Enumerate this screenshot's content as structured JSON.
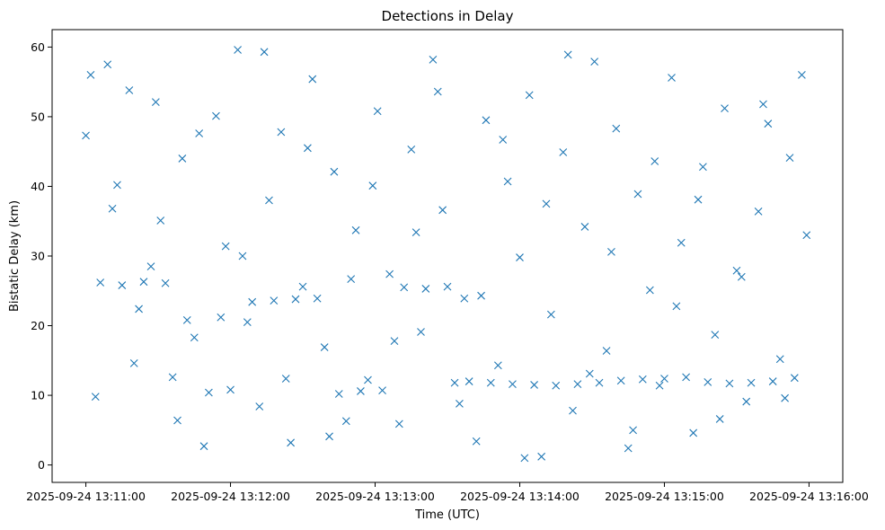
{
  "chart_data": {
    "type": "scatter",
    "title": "Detections in Delay",
    "xlabel": "Time (UTC)",
    "ylabel": "Bistatic Delay (km)",
    "x_tick_labels": [
      "2025-09-24 13:11:00",
      "2025-09-24 13:12:00",
      "2025-09-24 13:13:00",
      "2025-09-24 13:14:00",
      "2025-09-24 13:15:00",
      "2025-09-24 13:16:00"
    ],
    "x_tick_times": [
      "13:11:00",
      "13:12:00",
      "13:13:00",
      "13:14:00",
      "13:15:00",
      "13:16:00"
    ],
    "xlim": [
      "13:10:46",
      "13:16:14"
    ],
    "y_ticks": [
      0,
      10,
      20,
      30,
      40,
      50,
      60
    ],
    "ylim": [
      -2.5,
      62.5
    ],
    "grid": false,
    "legend": "none",
    "marker": "x",
    "color": "#1f77b4",
    "series": [
      {
        "x": [
          "13:11:00",
          "13:11:04",
          "13:11:09",
          "13:11:13",
          "13:11:18",
          "13:11:22",
          "13:11:27",
          "13:11:31",
          "13:11:36",
          "13:11:40",
          "13:11:45",
          "13:11:49",
          "13:11:54",
          "13:11:58",
          "13:12:03",
          "13:12:07",
          "13:12:12",
          "13:12:16",
          "13:12:21",
          "13:12:25",
          "13:12:30",
          "13:12:34",
          "13:12:39",
          "13:12:43",
          "13:12:48",
          "13:12:52",
          "13:12:57",
          "13:13:01",
          "13:13:06",
          "13:13:10",
          "13:13:15",
          "13:13:19",
          "13:13:24",
          "13:13:28",
          "13:13:33",
          "13:13:37",
          "13:13:42",
          "13:13:46",
          "13:13:51",
          "13:13:55",
          "13:14:00",
          "13:14:04",
          "13:14:09",
          "13:14:13",
          "13:14:18",
          "13:14:22",
          "13:14:27",
          "13:14:31",
          "13:14:36",
          "13:14:40",
          "13:14:45",
          "13:14:49",
          "13:14:54",
          "13:14:58",
          "13:15:03",
          "13:15:07",
          "13:15:12",
          "13:15:16",
          "13:15:21",
          "13:15:25",
          "13:15:30",
          "13:15:34",
          "13:15:39",
          "13:15:43",
          "13:15:48",
          "13:15:52",
          "13:15:57",
          "13:11:02",
          "13:11:11",
          "13:11:20",
          "13:11:29",
          "13:11:38",
          "13:11:47",
          "13:11:56",
          "13:12:05",
          "13:12:14",
          "13:12:23",
          "13:12:32",
          "13:12:41",
          "13:12:50",
          "13:12:59",
          "13:13:08",
          "13:13:17",
          "13:13:26",
          "13:13:35",
          "13:13:44",
          "13:13:53",
          "13:14:02",
          "13:14:11",
          "13:14:20",
          "13:14:29",
          "13:14:38",
          "13:14:47",
          "13:14:56",
          "13:15:05",
          "13:15:14",
          "13:15:23",
          "13:15:32",
          "13:15:41",
          "13:15:50",
          "13:15:59",
          "13:11:06",
          "13:11:15",
          "13:11:24",
          "13:11:33",
          "13:11:42",
          "13:11:51",
          "13:12:00",
          "13:12:09",
          "13:12:18",
          "13:12:27",
          "13:12:36",
          "13:12:45",
          "13:12:54",
          "13:13:03",
          "13:13:12",
          "13:13:21",
          "13:13:30",
          "13:13:39",
          "13:13:48",
          "13:13:57",
          "13:14:06",
          "13:14:15",
          "13:14:24",
          "13:14:33",
          "13:14:42",
          "13:14:51",
          "13:15:00",
          "13:15:09",
          "13:15:18",
          "13:15:27",
          "13:15:36",
          "13:15:45",
          "13:15:54"
        ],
        "y": [
          47.3,
          9.8,
          57.5,
          40.2,
          53.8,
          22.4,
          28.5,
          35.1,
          12.6,
          44.0,
          18.3,
          2.7,
          50.1,
          31.4,
          59.6,
          20.5,
          8.4,
          38.0,
          47.8,
          3.2,
          25.6,
          55.4,
          16.9,
          42.1,
          6.3,
          33.7,
          12.2,
          50.8,
          27.4,
          5.9,
          45.3,
          19.1,
          58.2,
          36.6,
          11.8,
          23.9,
          3.4,
          49.5,
          14.3,
          40.7,
          29.8,
          53.1,
          1.2,
          21.6,
          44.9,
          7.8,
          34.2,
          57.9,
          16.4,
          48.3,
          2.4,
          38.9,
          25.1,
          11.4,
          55.6,
          31.9,
          4.6,
          42.8,
          18.7,
          51.2,
          27.9,
          9.1,
          36.4,
          49.0,
          15.2,
          44.1,
          56.0,
          56.0,
          36.8,
          14.6,
          52.1,
          6.4,
          47.6,
          21.2,
          30.0,
          59.3,
          12.4,
          45.5,
          4.1,
          26.7,
          40.1,
          17.8,
          33.4,
          53.6,
          8.8,
          24.3,
          46.7,
          1.0,
          37.5,
          58.9,
          13.1,
          30.6,
          5.0,
          43.6,
          22.8,
          38.1,
          6.6,
          27.0,
          51.8,
          9.6,
          33.0,
          26.2,
          25.8,
          26.3,
          26.1,
          20.8,
          10.4,
          10.8,
          23.4,
          23.6,
          23.8,
          23.9,
          10.2,
          10.6,
          10.7,
          25.5,
          25.3,
          25.6,
          12.0,
          11.8,
          11.6,
          11.5,
          11.4,
          11.6,
          11.8,
          12.1,
          12.3,
          12.4,
          12.6,
          11.9,
          11.7,
          11.8,
          12.0,
          12.5
        ]
      }
    ]
  }
}
